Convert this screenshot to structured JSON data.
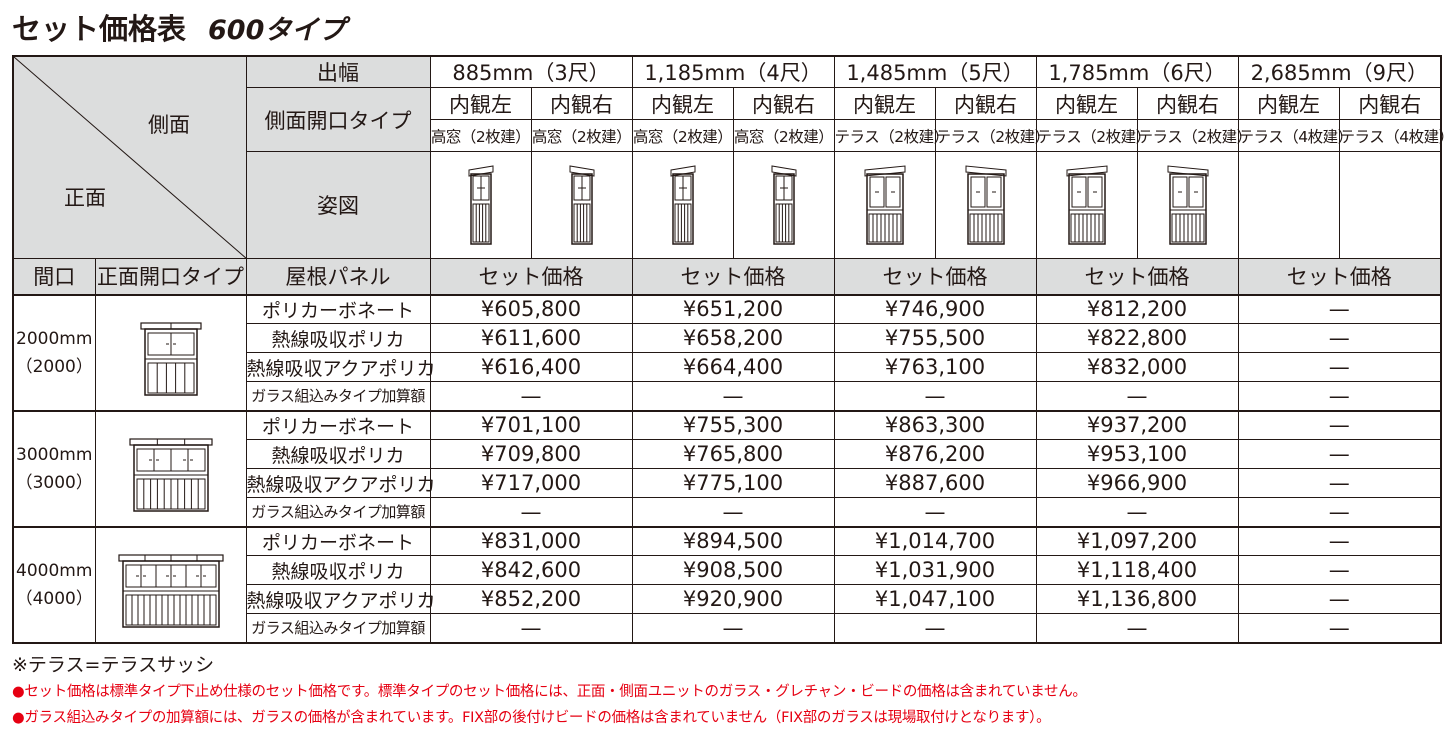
{
  "title": {
    "main": "セット価格表",
    "type": "600タイプ"
  },
  "header": {
    "side": "側面",
    "front": "正面",
    "width_label": "出幅",
    "side_open_label": "側面開口タイプ",
    "figure_label": "姿図",
    "bay_label": "間口",
    "front_open_label": "正面開口タイプ",
    "roof_label": "屋根パネル",
    "widths": [
      "885mm（3尺）",
      "1,185mm（4尺）",
      "1,485mm（5尺）",
      "1,785mm（6尺）",
      "2,685mm（9尺）"
    ],
    "views": [
      "内観左",
      "内観右",
      "内観左",
      "内観右",
      "内観左",
      "内観右",
      "内観左",
      "内観右",
      "内観左",
      "内観右"
    ],
    "openings": [
      "高窓（2枚建）",
      "高窓（2枚建）",
      "高窓（2枚建）",
      "高窓（2枚建）",
      "テラス（2枚建）",
      "テラス（2枚建）",
      "テラス（2枚建）",
      "テラス（2枚建）",
      "テラス（4枚建）",
      "テラス（4枚建）"
    ],
    "set_price": "セット価格"
  },
  "panels": [
    "ポリカーボネート",
    "熱線吸収ポリカ",
    "熱線吸収アクアポリカ",
    "ガラス組込みタイプ加算額"
  ],
  "rows": [
    {
      "size": "2000mm",
      "sub": "（2000）",
      "prices": [
        [
          "¥605,800",
          "¥651,200",
          "¥746,900",
          "¥812,200",
          "—"
        ],
        [
          "¥611,600",
          "¥658,200",
          "¥755,500",
          "¥822,800",
          "—"
        ],
        [
          "¥616,400",
          "¥664,400",
          "¥763,100",
          "¥832,000",
          "—"
        ],
        [
          "—",
          "—",
          "—",
          "—",
          "—"
        ]
      ]
    },
    {
      "size": "3000mm",
      "sub": "（3000）",
      "prices": [
        [
          "¥701,100",
          "¥755,300",
          "¥863,300",
          "¥937,200",
          "—"
        ],
        [
          "¥709,800",
          "¥765,800",
          "¥876,200",
          "¥953,100",
          "—"
        ],
        [
          "¥717,000",
          "¥775,100",
          "¥887,600",
          "¥966,900",
          "—"
        ],
        [
          "—",
          "—",
          "—",
          "—",
          "—"
        ]
      ]
    },
    {
      "size": "4000mm",
      "sub": "（4000）",
      "prices": [
        [
          "¥831,000",
          "¥894,500",
          "¥1,014,700",
          "¥1,097,200",
          "—"
        ],
        [
          "¥842,600",
          "¥908,500",
          "¥1,031,900",
          "¥1,118,400",
          "—"
        ],
        [
          "¥852,200",
          "¥920,900",
          "¥1,047,100",
          "¥1,136,800",
          "—"
        ],
        [
          "—",
          "—",
          "—",
          "—",
          "—"
        ]
      ]
    }
  ],
  "notes": {
    "n0": "※テラス=テラスサッシ",
    "n1": "●セット価格は標準タイプ下止め仕様のセット価格です。標準タイプのセット価格には、正面・側面ユニットのガラス・グレチャン・ビードの価格は含まれていません。",
    "n2": "●ガラス組込みタイプの加算額には、ガラスの価格が含まれています。FIX部の後付けビードの価格は含まれていません（FIX部のガラスは現場取付けとなります）。"
  }
}
